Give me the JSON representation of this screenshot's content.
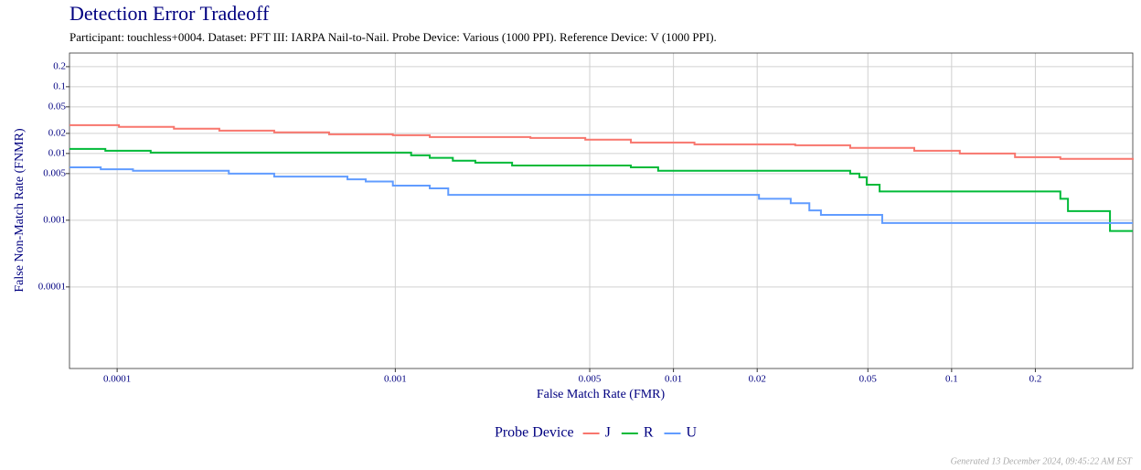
{
  "chart_data": {
    "type": "step",
    "title": "Detection Error Tradeoff",
    "subtitle": "Participant: touchless+0004. Dataset: PFT III: IARPA Nail-to-Nail. Probe Device: Various (1000 PPI). Reference Device: V (1000 PPI).",
    "x_label": "False Match Rate (FMR)",
    "y_label": "False Non-Match Rate (FNMR)",
    "legend_title": "Probe Device",
    "legend_position": "bottom",
    "footer": "Generated 13 December 2024, 09:45:22 AM EST",
    "log_x": true,
    "log_y": true,
    "grid": true,
    "xlim": [
      6.74e-05,
      0.448
    ],
    "ylim": [
      6e-06,
      0.32
    ],
    "xticks": [
      0.0001,
      0.001,
      0.005,
      0.01,
      0.02,
      0.05,
      0.1,
      0.2
    ],
    "yticks": [
      0.0001,
      0.001,
      0.005,
      0.01,
      0.02,
      0.05,
      0.1,
      0.2
    ],
    "series": [
      {
        "name": "J",
        "color": "#F8766D",
        "x": [
          6.74e-05,
          0.0001015,
          0.00016,
          0.000233,
          0.000367,
          0.000578,
          0.00098,
          0.00133,
          0.00306,
          0.00482,
          0.00703,
          0.0119,
          0.0274,
          0.0432,
          0.0734,
          0.107,
          0.169,
          0.246,
          0.448
        ],
        "values": [
          0.0266,
          0.025,
          0.0235,
          0.022,
          0.0207,
          0.0194,
          0.0188,
          0.0176,
          0.0171,
          0.0161,
          0.0146,
          0.0137,
          0.0133,
          0.0121,
          0.011,
          0.01,
          0.0088,
          0.0083,
          0.008
        ]
      },
      {
        "name": "R",
        "color": "#00BA38",
        "x": [
          6.74e-05,
          9.07e-05,
          0.000132,
          0.00114,
          0.00133,
          0.00161,
          0.00194,
          0.00263,
          0.00703,
          0.00881,
          0.0432,
          0.0466,
          0.0495,
          0.0551,
          0.246,
          0.262,
          0.371,
          0.448
        ],
        "values": [
          0.0117,
          0.011,
          0.0103,
          0.0094,
          0.0086,
          0.0078,
          0.0073,
          0.0066,
          0.0062,
          0.0055,
          0.005,
          0.0044,
          0.0034,
          0.0027,
          0.0021,
          0.00137,
          0.00069,
          0.00069
        ]
      },
      {
        "name": "U",
        "color": "#619CFF",
        "x": [
          6.74e-05,
          8.73e-05,
          0.000114,
          0.000252,
          0.000367,
          0.000673,
          0.000783,
          0.00098,
          0.00133,
          0.00155,
          0.0203,
          0.0264,
          0.0308,
          0.0339,
          0.0563,
          0.448
        ],
        "values": [
          0.0062,
          0.0058,
          0.0055,
          0.005,
          0.0045,
          0.0041,
          0.0038,
          0.0033,
          0.003,
          0.0024,
          0.0021,
          0.0018,
          0.0014,
          0.0012,
          0.00091,
          0.00091
        ]
      }
    ]
  }
}
